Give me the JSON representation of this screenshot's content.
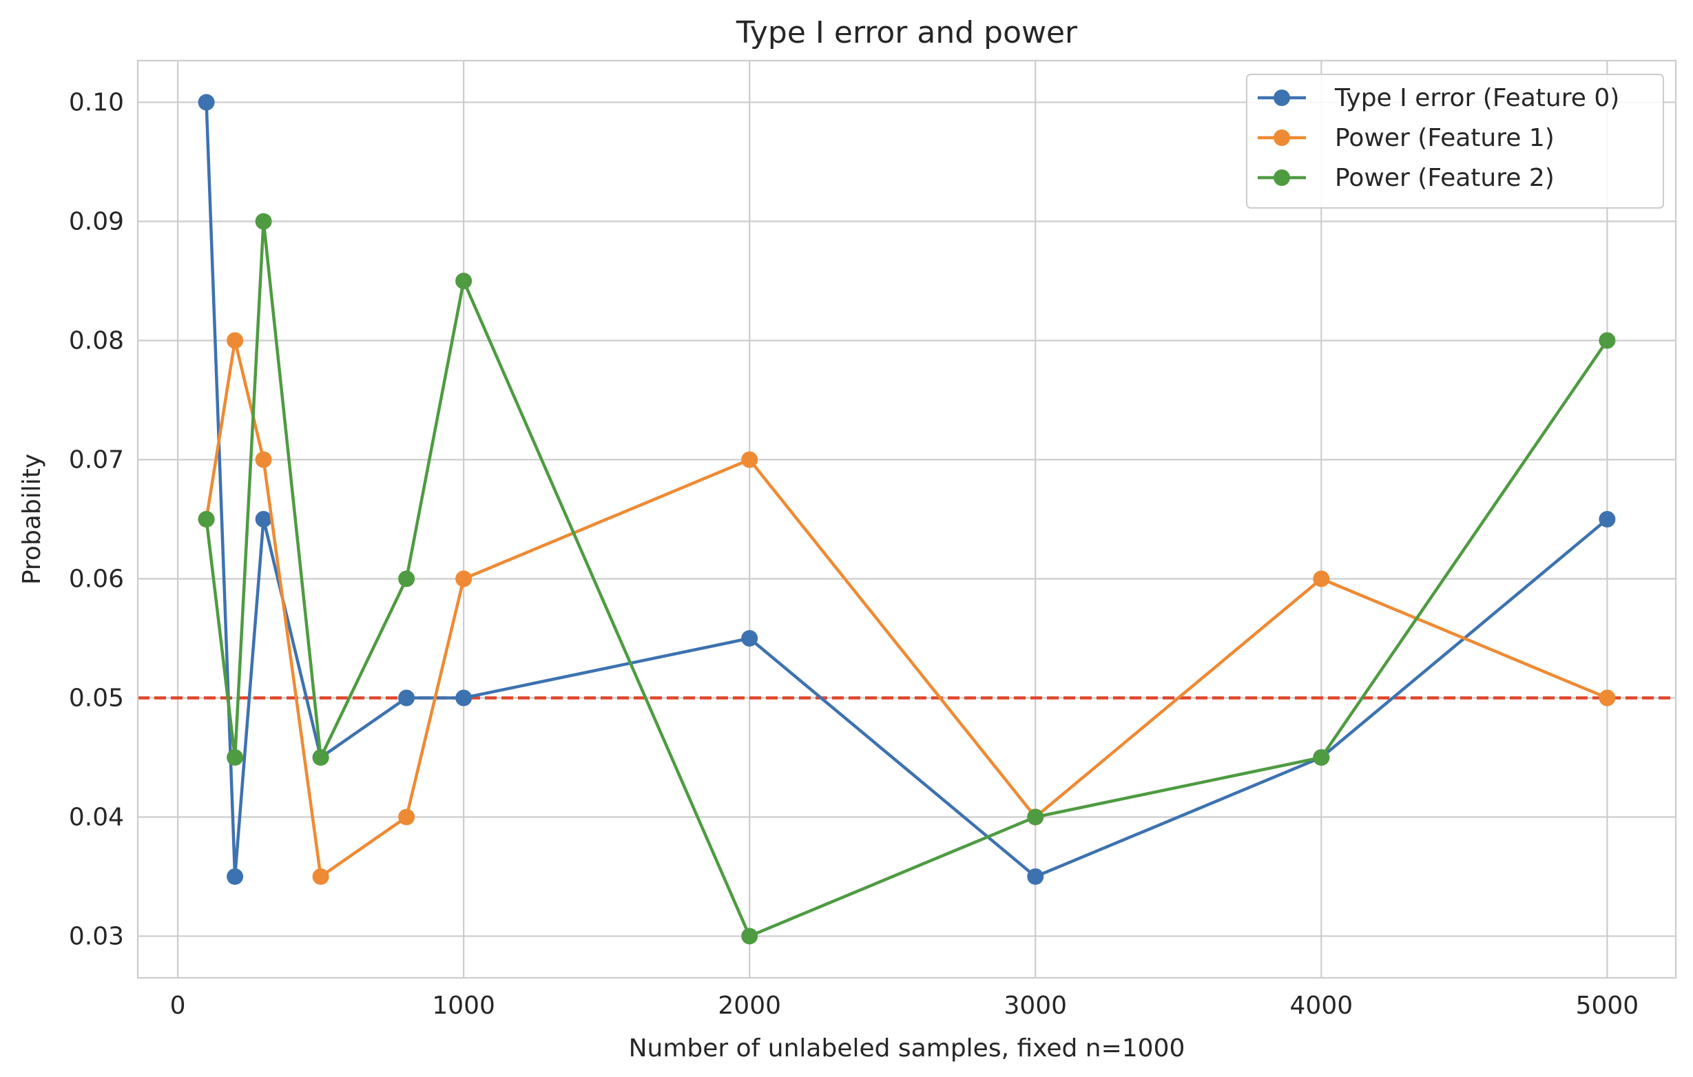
{
  "chart_data": {
    "type": "line",
    "title": "Type I error and power",
    "xlabel": "Number of unlabeled samples, fixed n=1000",
    "ylabel": "Probability",
    "xlim": [
      -140,
      5240
    ],
    "ylim": [
      0.0265,
      0.1035
    ],
    "xticks": [
      0,
      1000,
      2000,
      3000,
      4000,
      5000
    ],
    "xtick_labels": [
      "0",
      "1000",
      "2000",
      "3000",
      "4000",
      "5000"
    ],
    "yticks": [
      0.03,
      0.04,
      0.05,
      0.06,
      0.07,
      0.08,
      0.09,
      0.1
    ],
    "ytick_labels": [
      "0.03",
      "0.04",
      "0.05",
      "0.06",
      "0.07",
      "0.08",
      "0.09",
      "0.10"
    ],
    "grid": true,
    "legend_position": "top-right",
    "x": [
      100,
      200,
      300,
      500,
      800,
      1000,
      2000,
      3000,
      4000,
      5000
    ],
    "series": [
      {
        "name": "Type I error (Feature 0)",
        "color": "#3d72b0",
        "marker": "circle",
        "values": [
          0.1,
          0.035,
          0.065,
          0.045,
          0.05,
          0.05,
          0.055,
          0.035,
          0.045,
          0.065
        ]
      },
      {
        "name": "Power (Feature 1)",
        "color": "#ee8a33",
        "marker": "circle",
        "values": [
          0.065,
          0.08,
          0.07,
          0.035,
          0.04,
          0.06,
          0.07,
          0.04,
          0.06,
          0.05
        ]
      },
      {
        "name": "Power (Feature 2)",
        "color": "#4e9b41",
        "marker": "circle",
        "values": [
          0.065,
          0.045,
          0.09,
          0.045,
          0.06,
          0.085,
          0.03,
          0.04,
          0.045,
          0.08
        ]
      }
    ],
    "reference_line": {
      "y": 0.05,
      "color": "#e0462c",
      "style": "dashed"
    }
  }
}
